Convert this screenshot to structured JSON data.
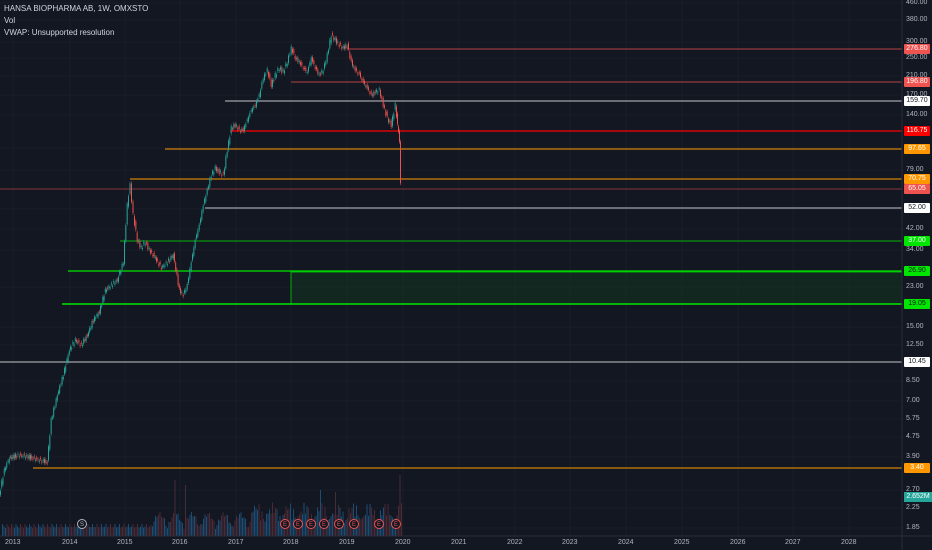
{
  "legend": {
    "title": "HANSA BIOPHARMA AB, 1W, OMXSTO",
    "vol": "Vol",
    "vwap": "VWAP: Unsupported resolution"
  },
  "y_ticks": [
    "460.00",
    "380.00",
    "300.00",
    "250.00",
    "210.00",
    "170.00",
    "140.00",
    "97.00",
    "79.00",
    "52.00",
    "42.00",
    "34.00",
    "23.00",
    "15.00",
    "12.50",
    "8.50",
    "7.00",
    "5.75",
    "4.75",
    "3.90",
    "2.70",
    "2.25",
    "1.85"
  ],
  "x_ticks": [
    "2013",
    "2014",
    "2015",
    "2016",
    "2017",
    "2018",
    "2019",
    "2020",
    "2021",
    "2022",
    "2023",
    "2024",
    "2025",
    "2026",
    "2027",
    "2028"
  ],
  "price_labels": [
    {
      "text": "276.80",
      "bg": "#ef5350",
      "fg": "#ffffff"
    },
    {
      "text": "196.80",
      "bg": "#ef5350",
      "fg": "#ffffff"
    },
    {
      "text": "159.70",
      "bg": "#ffffff",
      "fg": "#131722"
    },
    {
      "text": "116.75",
      "bg": "#ff0000",
      "fg": "#ffffff"
    },
    {
      "text": "97.65",
      "bg": "#ff9800",
      "fg": "#ffffff"
    },
    {
      "text": "70.75",
      "bg": "#ff9800",
      "fg": "#ffffff"
    },
    {
      "text": "65.05",
      "bg": "#ef5350",
      "fg": "#ffffff"
    },
    {
      "text": "52.00",
      "bg": "#ffffff",
      "fg": "#131722"
    },
    {
      "text": "37.00",
      "bg": "#00e600",
      "fg": "#ffffff"
    },
    {
      "text": "26.90",
      "bg": "#00e600",
      "fg": "#131722"
    },
    {
      "text": "19.05",
      "bg": "#00e600",
      "fg": "#131722"
    },
    {
      "text": "10.45",
      "bg": "#ffffff",
      "fg": "#131722"
    },
    {
      "text": "3.40",
      "bg": "#ff9800",
      "fg": "#ffffff"
    }
  ],
  "volume_label": "2.652M",
  "events": [
    {
      "label": "S",
      "type": "split"
    },
    {
      "label": "E",
      "type": "earnings"
    },
    {
      "label": "E",
      "type": "earnings"
    },
    {
      "label": "E",
      "type": "earnings"
    },
    {
      "label": "E",
      "type": "earnings"
    },
    {
      "label": "E",
      "type": "earnings"
    },
    {
      "label": "E",
      "type": "earnings"
    },
    {
      "label": "E",
      "type": "earnings"
    },
    {
      "label": "E",
      "type": "earnings"
    }
  ],
  "colors": {
    "background": "#131722",
    "up": "#26a69a",
    "down": "#ef5350",
    "grid": "#1e222d"
  }
}
